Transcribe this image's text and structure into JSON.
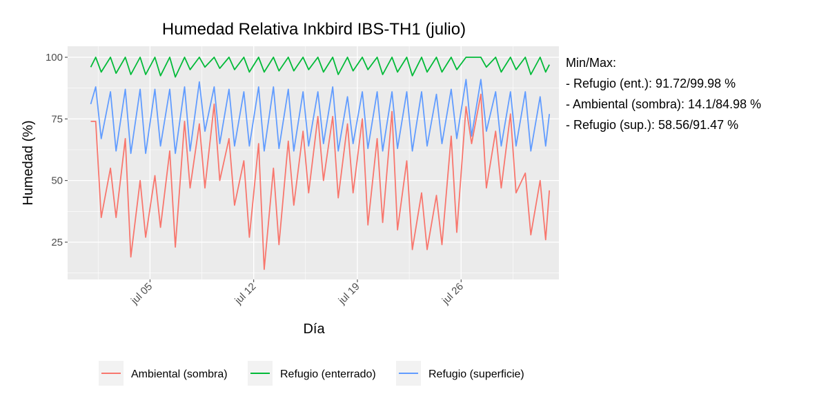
{
  "chart_data": {
    "type": "line",
    "title": "Humedad Relativa Inkbird IBS-TH1 (julio)",
    "xlabel": "Día",
    "ylabel": "Humedad (%)",
    "ylim": [
      10,
      104.5
    ],
    "yticks": [
      25,
      50,
      75,
      100
    ],
    "xticks": [
      {
        "label": "jul 05",
        "date": "07-05"
      },
      {
        "label": "jul 12",
        "date": "07-12"
      },
      {
        "label": "jul 19",
        "date": "07-19"
      },
      {
        "label": "jul 26",
        "date": "07-26"
      }
    ],
    "grid": true,
    "legend_position": "bottom",
    "annotation": [
      "Min/Max:",
      "- Refugio (ent.): 91.72/99.98 %",
      "- Ambiental (sombra): 14.1/84.98 %",
      "- Refugio (sup.): 58.56/91.47 %"
    ],
    "x": [
      "07-01 00:00",
      "07-01 08:00",
      "07-01 17:00",
      "07-02 08:00",
      "07-02 17:00",
      "07-03 08:00",
      "07-03 17:00",
      "07-04 08:00",
      "07-04 17:00",
      "07-05 08:00",
      "07-05 17:00",
      "07-06 08:00",
      "07-06 17:00",
      "07-07 08:00",
      "07-07 17:00",
      "07-08 08:00",
      "07-08 17:00",
      "07-09 08:00",
      "07-09 17:00",
      "07-10 08:00",
      "07-10 17:00",
      "07-11 08:00",
      "07-11 17:00",
      "07-12 08:00",
      "07-12 17:00",
      "07-13 08:00",
      "07-13 17:00",
      "07-14 08:00",
      "07-14 17:00",
      "07-15 08:00",
      "07-15 17:00",
      "07-16 08:00",
      "07-16 17:00",
      "07-17 08:00",
      "07-17 17:00",
      "07-18 08:00",
      "07-18 17:00",
      "07-19 08:00",
      "07-19 17:00",
      "07-20 08:00",
      "07-20 17:00",
      "07-21 08:00",
      "07-21 17:00",
      "07-22 08:00",
      "07-22 17:00",
      "07-23 08:00",
      "07-23 17:00",
      "07-24 08:00",
      "07-24 17:00",
      "07-25 08:00",
      "07-25 17:00",
      "07-26 08:00",
      "07-26 17:00",
      "07-27 08:00",
      "07-27 17:00",
      "07-28 08:00",
      "07-28 17:00",
      "07-29 08:00",
      "07-29 17:00",
      "07-30 08:00",
      "07-30 17:00",
      "07-31 08:00",
      "07-31 17:00",
      "07-31 23:00"
    ],
    "series": [
      {
        "name": "Ambiental (sombra)",
        "color": "#F8766D",
        "values": [
          74,
          74,
          35,
          55,
          35,
          67,
          19,
          50,
          27,
          52,
          31,
          62,
          23,
          74,
          47,
          73,
          47,
          81,
          50,
          67,
          40,
          58,
          27,
          65,
          14,
          55,
          24,
          66,
          40,
          70,
          45,
          76,
          50,
          76,
          43,
          73,
          45,
          75,
          32,
          67,
          33,
          78,
          30,
          58,
          22,
          45,
          22,
          44,
          24,
          68,
          29,
          80,
          65,
          85,
          47,
          70,
          47,
          77,
          45,
          53,
          28,
          50,
          26,
          46
        ]
      },
      {
        "name": "Refugio (enterrado)",
        "color": "#00BA38",
        "values": [
          96,
          100,
          94,
          100,
          93.5,
          100,
          93,
          100,
          93,
          100,
          92.5,
          100,
          92,
          100,
          95,
          100,
          96,
          100,
          95.5,
          100,
          95,
          100,
          94,
          100,
          94,
          100,
          94.5,
          100,
          94.5,
          100,
          95,
          100,
          94,
          100,
          93,
          100,
          94.5,
          100,
          95,
          100,
          93,
          100,
          94,
          100,
          92.5,
          100,
          94,
          100,
          94,
          100,
          95,
          100,
          100,
          100,
          96,
          100,
          94,
          100,
          95,
          100,
          93,
          100,
          94,
          97
        ]
      },
      {
        "name": "Refugio (superficie)",
        "color": "#619CFF",
        "values": [
          81,
          88,
          67,
          86,
          62,
          87,
          61,
          87,
          61,
          87,
          64,
          87,
          61,
          88,
          62,
          90,
          70,
          88,
          65,
          87,
          64,
          86,
          64,
          88,
          62,
          88,
          63,
          87,
          62,
          86,
          64,
          86,
          65,
          88,
          62,
          84,
          65,
          86,
          63,
          86,
          62,
          86,
          63,
          86,
          62,
          86,
          64,
          85,
          65,
          87,
          67,
          91,
          68,
          91,
          70,
          86,
          64,
          86,
          64,
          86,
          62,
          84,
          64,
          77
        ]
      }
    ]
  }
}
